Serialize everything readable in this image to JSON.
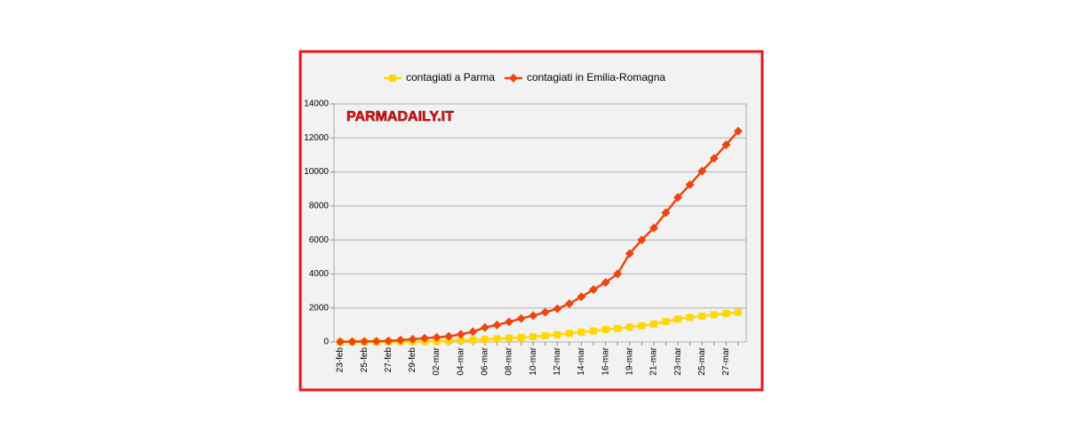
{
  "chart_data": {
    "type": "line",
    "annotation": "PARMADAILY.IT",
    "categories": [
      "23-feb",
      null,
      "25-feb",
      null,
      "27-feb",
      null,
      "29-feb",
      null,
      "02-mar",
      null,
      "04-mar",
      null,
      "06-mar",
      null,
      "08-mar",
      null,
      "10-mar",
      null,
      "12-mar",
      null,
      "14-mar",
      null,
      "16-mar",
      null,
      "19-mar",
      null,
      "21-mar",
      null,
      "23-mar",
      null,
      "25-mar",
      null,
      "27-mar",
      null
    ],
    "series": [
      {
        "name": "contagiati a Parma",
        "color": "#ffd700",
        "marker": "square",
        "values": [
          0,
          1,
          2,
          3,
          5,
          10,
          20,
          30,
          40,
          60,
          90,
          120,
          150,
          180,
          220,
          260,
          310,
          370,
          430,
          500,
          580,
          650,
          730,
          800,
          870,
          950,
          1050,
          1200,
          1350,
          1450,
          1520,
          1600,
          1680,
          1750
        ]
      },
      {
        "name": "contagiati in Emilia-Romagna",
        "color": "#ee4411",
        "marker": "diamond",
        "values": [
          10,
          20,
          30,
          40,
          60,
          110,
          160,
          220,
          270,
          330,
          450,
          600,
          850,
          1000,
          1180,
          1380,
          1550,
          1750,
          1950,
          2250,
          2660,
          3080,
          3500,
          4000,
          5200,
          6000,
          6700,
          7600,
          8500,
          9250,
          10050,
          10800,
          11600,
          12400
        ]
      }
    ],
    "ylim": [
      0,
      14000
    ],
    "yticks": [
      0,
      2000,
      4000,
      6000,
      8000,
      10000,
      12000,
      14000
    ],
    "grid": true
  }
}
